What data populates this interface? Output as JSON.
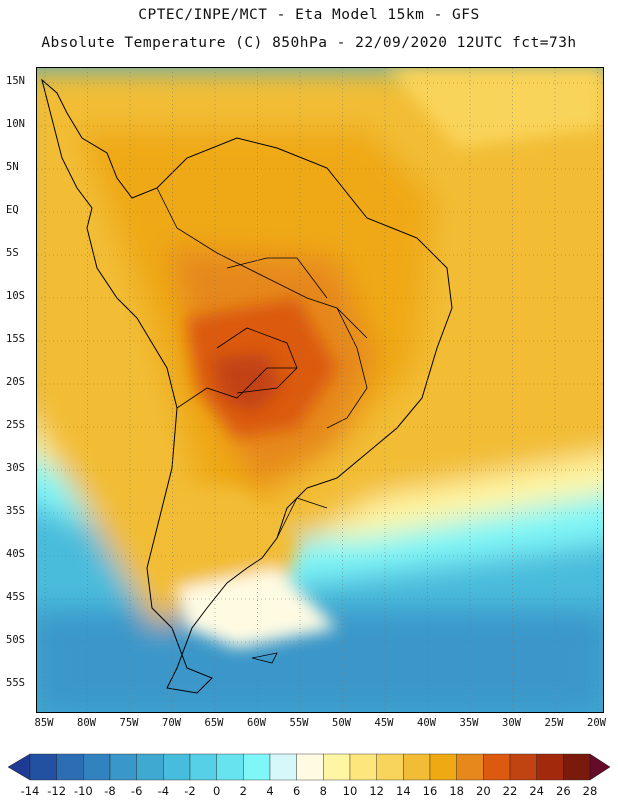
{
  "header": {
    "line1": "CPTEC/INPE/MCT -  Eta Model 15km - GFS",
    "line2": "Absolute Temperature (C) 850hPa - 22/09/2020 12UTC fct=73h"
  },
  "map": {
    "lat_ticks": [
      "15N",
      "10N",
      "5N",
      "EQ",
      "5S",
      "10S",
      "15S",
      "20S",
      "25S",
      "30S",
      "35S",
      "40S",
      "45S",
      "50S",
      "55S"
    ],
    "lon_ticks": [
      "85W",
      "80W",
      "75W",
      "70W",
      "65W",
      "60W",
      "55W",
      "50W",
      "45W",
      "40W",
      "35W",
      "30W",
      "25W",
      "20W"
    ],
    "grid": "dotted"
  },
  "colorbar": {
    "levels": [
      "-14",
      "-12",
      "-10",
      "-8",
      "-6",
      "-4",
      "-2",
      "0",
      "2",
      "4",
      "6",
      "8",
      "10",
      "12",
      "14",
      "16",
      "18",
      "20",
      "22",
      "24",
      "26",
      "28"
    ],
    "colors": [
      "#1f3a93",
      "#2250a3",
      "#2c6db3",
      "#3282c0",
      "#3a97c9",
      "#40a9d2",
      "#48bcdc",
      "#55d0e6",
      "#66e3ef",
      "#7ff6f7",
      "#d6f8fb",
      "#fffbe3",
      "#fff6a4",
      "#fde77c",
      "#f9d45a",
      "#f2bd34",
      "#efa913",
      "#e6881c",
      "#db5a10",
      "#c24312",
      "#a3290c",
      "#7a1a0c",
      "#650b2a"
    ]
  }
}
